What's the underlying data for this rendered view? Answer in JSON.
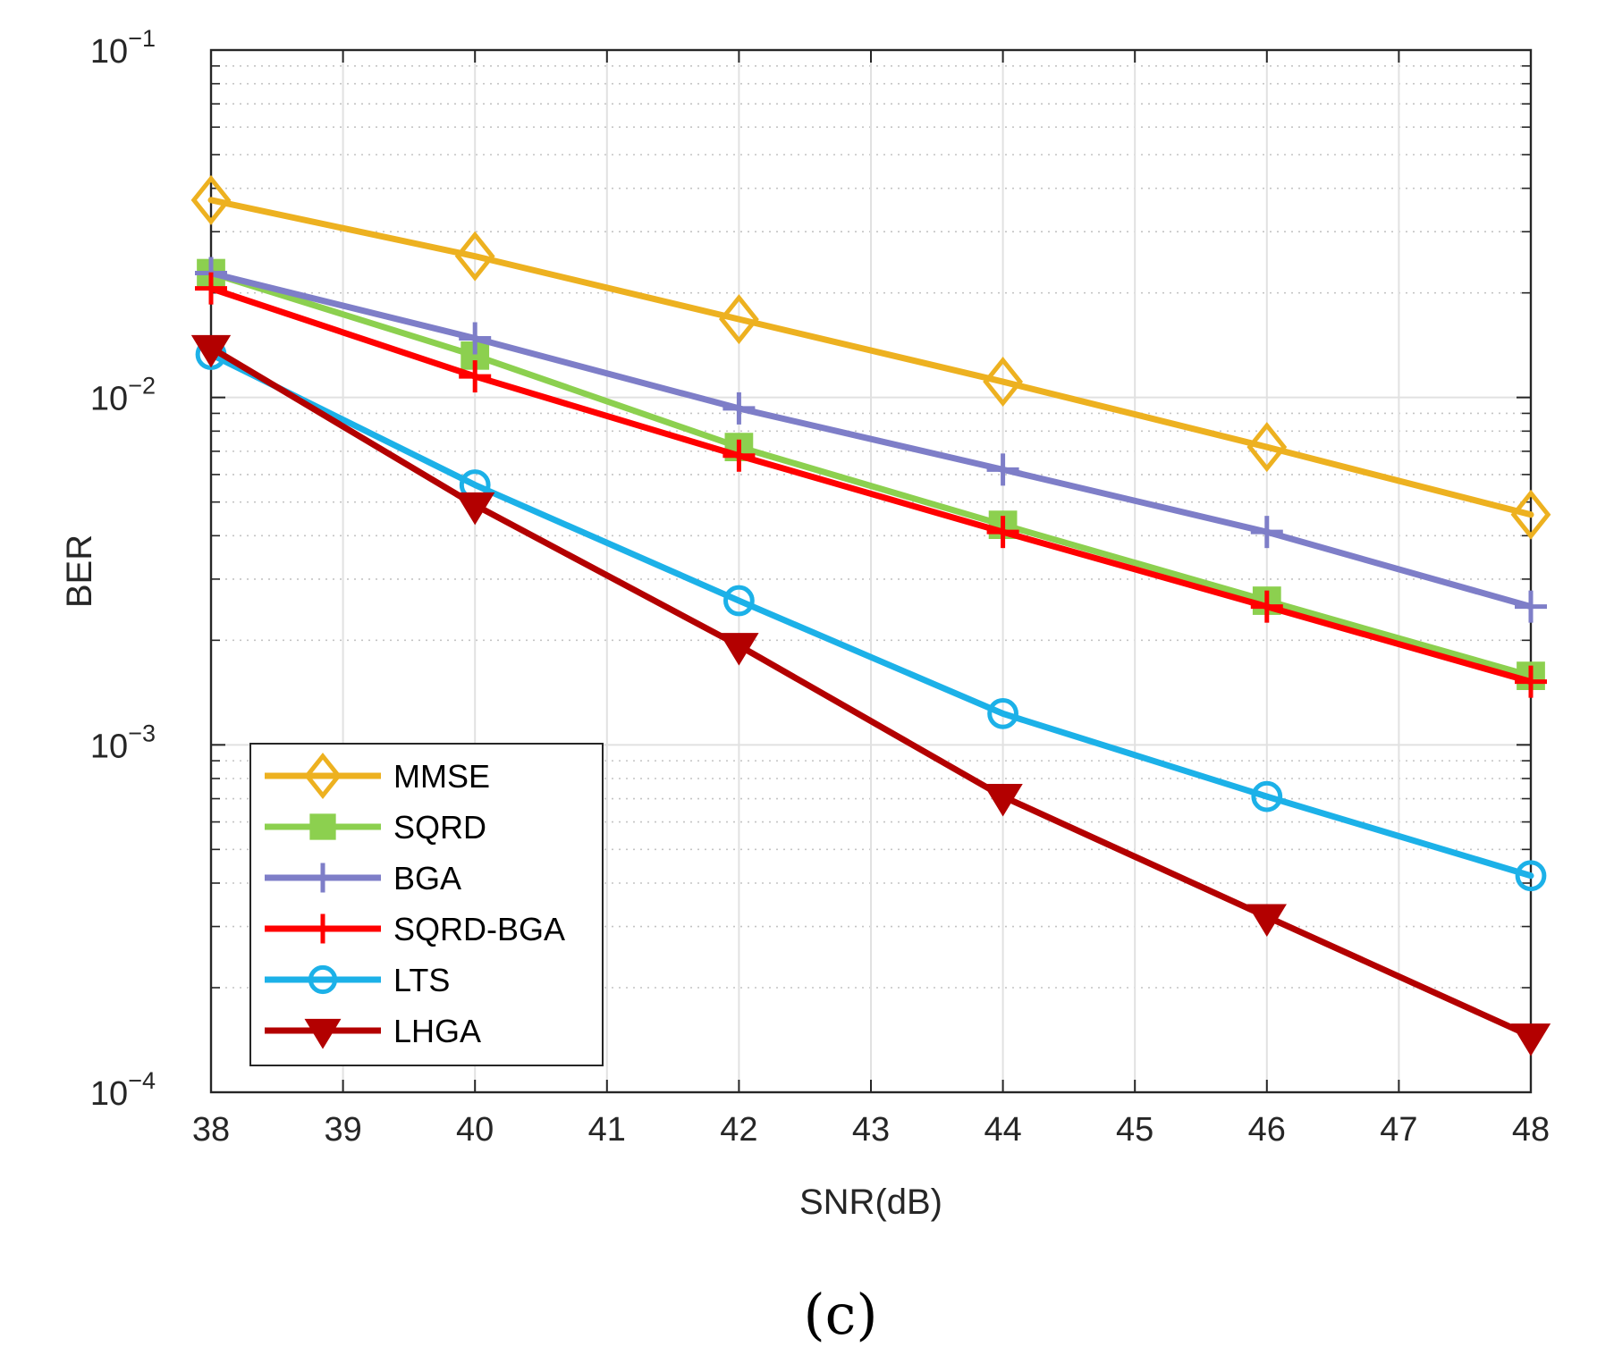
{
  "chart_data": {
    "type": "line",
    "xlabel": "SNR(dB)",
    "ylabel": "BER",
    "x_scale": "linear",
    "y_scale": "log",
    "xlim": [
      38,
      48
    ],
    "ylim": [
      0.0001,
      0.1
    ],
    "x_ticks": [
      "38",
      "39",
      "40",
      "41",
      "42",
      "43",
      "44",
      "45",
      "46",
      "47",
      "48"
    ],
    "y_ticks": [
      {
        "value": 0.1,
        "base": "10",
        "exp": "−1"
      },
      {
        "value": 0.01,
        "base": "10",
        "exp": "−2"
      },
      {
        "value": 0.001,
        "base": "10",
        "exp": "−3"
      },
      {
        "value": 0.0001,
        "base": "10",
        "exp": "−4"
      }
    ],
    "grid": true,
    "legend_position": "bottom-left",
    "caption": "(c)",
    "x": [
      38,
      40,
      42,
      44,
      46,
      48
    ],
    "series": [
      {
        "name": "MMSE",
        "color": "#EDB120",
        "marker": "diamond",
        "values": [
          0.037,
          0.0255,
          0.0168,
          0.0111,
          0.0072,
          0.0046
        ]
      },
      {
        "name": "SQRD",
        "color": "#8CD04F",
        "marker": "square",
        "values": [
          0.0228,
          0.0132,
          0.0072,
          0.0043,
          0.0026,
          0.00158
        ]
      },
      {
        "name": "BGA",
        "color": "#7E7EC8",
        "marker": "plus",
        "values": [
          0.0228,
          0.0148,
          0.0093,
          0.0062,
          0.0041,
          0.0025
        ]
      },
      {
        "name": "SQRD-BGA",
        "color": "#FF0000",
        "marker": "plus",
        "values": [
          0.0206,
          0.0115,
          0.0068,
          0.0041,
          0.0025,
          0.00152
        ]
      },
      {
        "name": "LTS",
        "color": "#1CB1E8",
        "marker": "circle",
        "values": [
          0.0133,
          0.0056,
          0.0026,
          0.00123,
          0.00071,
          0.00042
        ]
      },
      {
        "name": "LHGA",
        "color": "#B30000",
        "marker": "triangle-down",
        "values": [
          0.0139,
          0.0049,
          0.00193,
          0.00071,
          0.00032,
          0.000145
        ]
      }
    ]
  }
}
